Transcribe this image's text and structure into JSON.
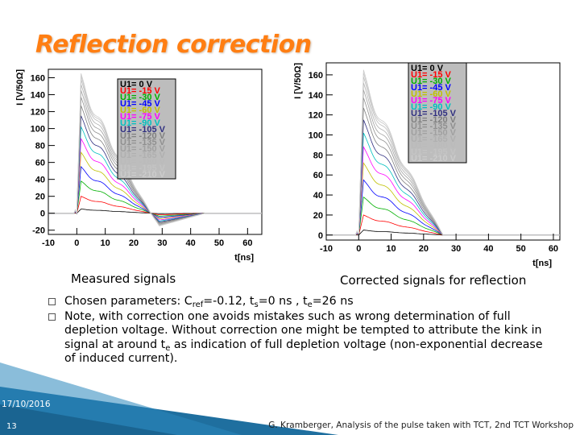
{
  "slide": {
    "title": "Reflection correction",
    "date": "17/10/2016",
    "page_number": "13",
    "footer": "G. Kramberger, Analysis of the pulse taken with TCT, 2nd TCT Workshop",
    "colors": {
      "title": "#ff7e12",
      "decor_blue": "#1f6f9f"
    }
  },
  "captions": {
    "left": "Measured signals",
    "right": "Corrected signals for reflection"
  },
  "bullets": [
    {
      "pre": "Chosen parameters: C",
      "sub1": "ref",
      "mid1": "=-0.12, t",
      "sub2": "s",
      "mid2": "=0 ns , t",
      "sub3": "e",
      "post": "=26 ns"
    },
    {
      "pre": "Note, with correction one avoids mistakes such as wrong determination of full depletion voltage. Without correction one might be tempted to attribute the kink in signal at around t",
      "sub": "e",
      "post": " as indication of full depletion voltage (non-exponential decrease of induced current)."
    }
  ],
  "chart_data": [
    {
      "type": "line",
      "title": "",
      "xlabel": "t[ns]",
      "ylabel": "I [V/50Ω]",
      "xlim": [
        -10,
        65
      ],
      "ylim": [
        -25,
        170
      ],
      "xticks": [
        "-10",
        "0",
        "10",
        "20",
        "30",
        "40",
        "50",
        "60"
      ],
      "yticks": [
        "-20",
        "0",
        "20",
        "40",
        "60",
        "80",
        "100",
        "120",
        "140",
        "160"
      ],
      "legend_placement": "top-center",
      "series": [
        {
          "name": "U1= 0 V",
          "color": "#000000",
          "peak": 5
        },
        {
          "name": "U1= -15 V",
          "color": "#ff0000",
          "peak": 20
        },
        {
          "name": "U1= -30 V",
          "color": "#00b000",
          "peak": 38
        },
        {
          "name": "U1= -45 V",
          "color": "#0000ff",
          "peak": 55
        },
        {
          "name": "U1= -60 V",
          "color": "#c0c000",
          "peak": 72
        },
        {
          "name": "U1= -75 V",
          "color": "#ff00ff",
          "peak": 88
        },
        {
          "name": "U1= -90 V",
          "color": "#00c0c0",
          "peak": 102
        },
        {
          "name": "U1= -105 V",
          "color": "#303080",
          "peak": 115
        },
        {
          "name": "U1= -120 V",
          "color": "#808080",
          "peak": 127
        },
        {
          "name": "U1= -135 V",
          "color": "#909090",
          "peak": 137
        },
        {
          "name": "U1= -150 V",
          "color": "#a0a0a0",
          "peak": 145
        },
        {
          "name": "U1= -165 V",
          "color": "#b0b0b0",
          "peak": 152
        },
        {
          "name": "U1= -180 V",
          "color": "#bbbbbb",
          "peak": 158
        },
        {
          "name": "U1= -195 V",
          "color": "#c4c4c4",
          "peak": 162
        },
        {
          "name": "U1= -210 V",
          "color": "#cccccc",
          "peak": 165
        }
      ],
      "shape": {
        "rise_start": 0,
        "peak_at": 1.5,
        "fall_end": 26,
        "undershoot": -15,
        "undershoot_at": 29,
        "recover_at": 45
      }
    },
    {
      "type": "line",
      "title": "",
      "xlabel": "t[ns]",
      "ylabel": "I [V/50Ω]",
      "xlim": [
        -10,
        62
      ],
      "ylim": [
        -5,
        172
      ],
      "xticks": [
        "-10",
        "0",
        "10",
        "20",
        "30",
        "40",
        "50",
        "60"
      ],
      "yticks": [
        "0",
        "20",
        "40",
        "60",
        "80",
        "100",
        "120",
        "140",
        "160"
      ],
      "legend_placement": "top-center",
      "series": [
        {
          "name": "U1= 0 V",
          "color": "#000000",
          "peak": 5
        },
        {
          "name": "U1= -15 V",
          "color": "#ff0000",
          "peak": 20
        },
        {
          "name": "U1= -30 V",
          "color": "#00b000",
          "peak": 38
        },
        {
          "name": "U1= -45 V",
          "color": "#0000ff",
          "peak": 55
        },
        {
          "name": "U1= -60 V",
          "color": "#c0c000",
          "peak": 72
        },
        {
          "name": "U1= -75 V",
          "color": "#ff00ff",
          "peak": 88
        },
        {
          "name": "U1= -90 V",
          "color": "#00c0c0",
          "peak": 102
        },
        {
          "name": "U1= -105 V",
          "color": "#303080",
          "peak": 115
        },
        {
          "name": "U1= -120 V",
          "color": "#808080",
          "peak": 127
        },
        {
          "name": "U1= -135 V",
          "color": "#909090",
          "peak": 137
        },
        {
          "name": "U1= -150 V",
          "color": "#a0a0a0",
          "peak": 145
        },
        {
          "name": "U1= -165 V",
          "color": "#b0b0b0",
          "peak": 152
        },
        {
          "name": "U1= -180 V",
          "color": "#bbbbbb",
          "peak": 158
        },
        {
          "name": "U1= -195 V",
          "color": "#c4c4c4",
          "peak": 162
        },
        {
          "name": "U1= -210 V",
          "color": "#cccccc",
          "peak": 165
        }
      ],
      "shape": {
        "rise_start": 0,
        "peak_at": 1.5,
        "fall_end": 26,
        "undershoot": 0,
        "undershoot_at": 29,
        "recover_at": 45
      }
    }
  ]
}
